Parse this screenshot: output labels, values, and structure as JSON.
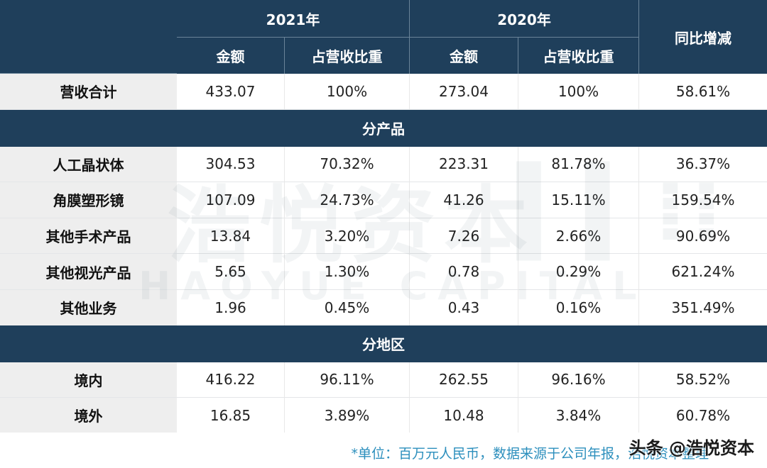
{
  "header": {
    "year_2021": "2021年",
    "year_2020": "2020年",
    "yoy": "同比增减",
    "sub_amount_2021": "金额",
    "sub_share_2021": "占营收比重",
    "sub_amount_2020": "金额",
    "sub_share_2020": "占营收比重"
  },
  "total_row": {
    "label": "营收合计",
    "a2021": "433.07",
    "s2021": "100%",
    "a2020": "273.04",
    "s2020": "100%",
    "yoy": "58.61%"
  },
  "section_product": "分产品",
  "product_rows": [
    {
      "label": "人工晶状体",
      "a2021": "304.53",
      "s2021": "70.32%",
      "a2020": "223.31",
      "s2020": "81.78%",
      "yoy": "36.37%"
    },
    {
      "label": "角膜塑形镜",
      "a2021": "107.09",
      "s2021": "24.73%",
      "a2020": "41.26",
      "s2020": "15.11%",
      "yoy": "159.54%"
    },
    {
      "label": "其他手术产品",
      "a2021": "13.84",
      "s2021": "3.20%",
      "a2020": "7.26",
      "s2020": "2.66%",
      "yoy": "90.69%"
    },
    {
      "label": "其他视光产品",
      "a2021": "5.65",
      "s2021": "1.30%",
      "a2020": "0.78",
      "s2020": "0.29%",
      "yoy": "621.24%"
    },
    {
      "label": "其他业务",
      "a2021": "1.96",
      "s2021": "0.45%",
      "a2020": "0.43",
      "s2020": "0.16%",
      "yoy": "351.49%"
    }
  ],
  "section_region": "分地区",
  "region_rows": [
    {
      "label": "境内",
      "a2021": "416.22",
      "s2021": "96.11%",
      "a2020": "262.55",
      "s2020": "96.16%",
      "yoy": "58.52%"
    },
    {
      "label": "境外",
      "a2021": "16.85",
      "s2021": "3.89%",
      "a2020": "10.48",
      "s2020": "3.84%",
      "yoy": "60.78%"
    }
  ],
  "watermark": {
    "cn": "浩悦资本",
    "en": "HAOYUE CAPITAL"
  },
  "footer": {
    "note": "*单位：百万元人民币，数据来源于公司年报，浩悦资本整理",
    "brand": "头条 @浩悦资本"
  },
  "colors": {
    "header_bg": "#1f3f5b",
    "label_bg": "#eeeeee",
    "note": "#2c8fbd"
  }
}
